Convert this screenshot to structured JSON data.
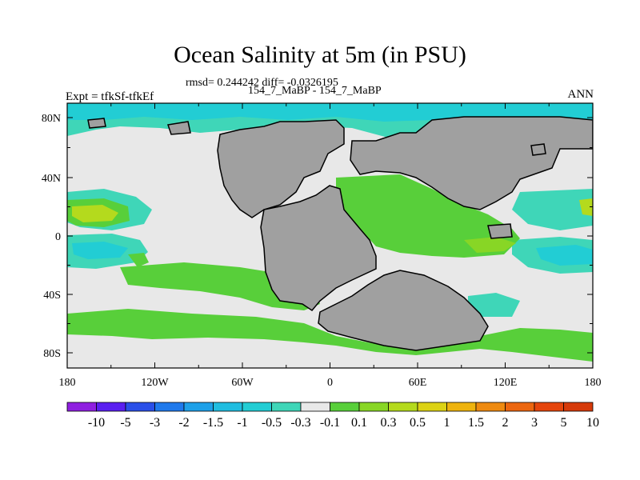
{
  "title": "Ocean Salinity at 5m (in PSU)",
  "stats_line": "rmsd= 0.244242 diff= -0.0326195",
  "subtitle": "154_7_MaBP - 154_7_MaBP",
  "left_label": "Expt = tfkSf-tfkEf",
  "right_label": "ANN",
  "map": {
    "lon_ticks": [
      "180",
      "120W",
      "60W",
      "0",
      "60E",
      "120E",
      "180"
    ],
    "lat_ticks": [
      "80N",
      "40N",
      "0",
      "40S",
      "80S"
    ],
    "land_color": "#a0a0a0"
  },
  "colorbar": {
    "labels": [
      "-10",
      "-5",
      "-3",
      "-2",
      "-1.5",
      "-1",
      "-0.5",
      "-0.3",
      "-0.1",
      "0.1",
      "0.3",
      "0.5",
      "1",
      "1.5",
      "2",
      "3",
      "5",
      "10"
    ],
    "colors": [
      "#8f1fe0",
      "#5a1ff0",
      "#2a4fe8",
      "#1f79ec",
      "#1ea0e8",
      "#20bde0",
      "#22cdd4",
      "#3fd6b8",
      "#e8e8e8",
      "#58cf3a",
      "#88d625",
      "#b4da1d",
      "#dcd214",
      "#eeb30e",
      "#ee8a10",
      "#ec660f",
      "#e5450c",
      "#d63a0a"
    ]
  }
}
